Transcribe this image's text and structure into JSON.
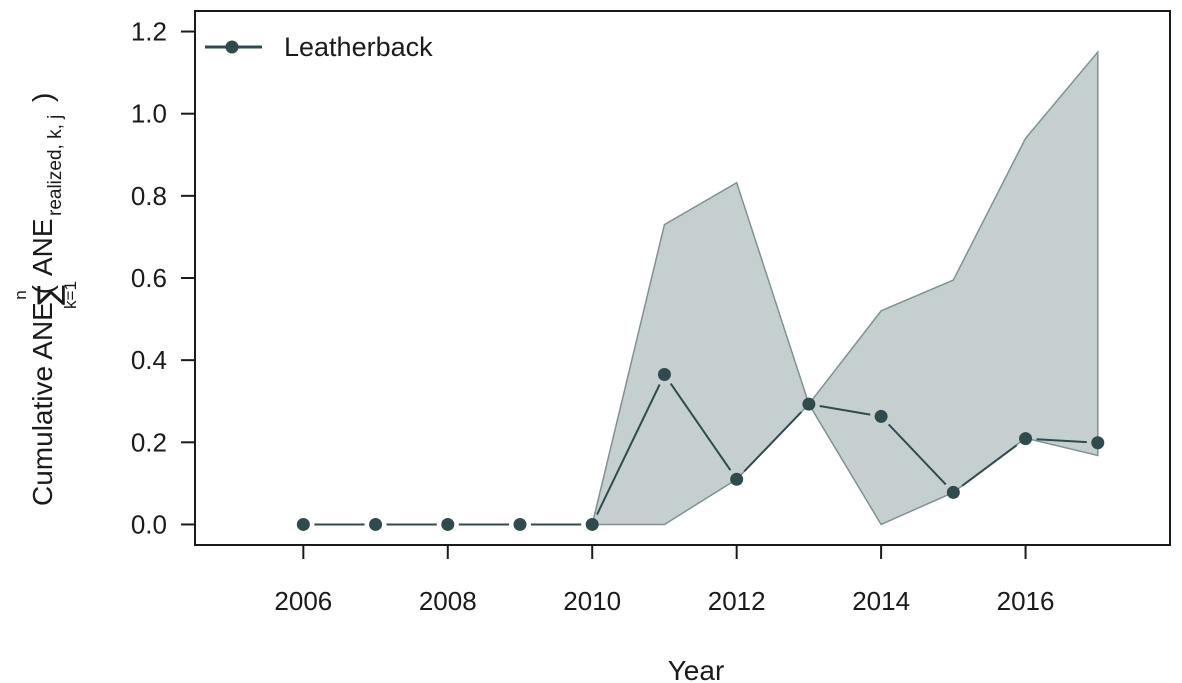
{
  "chart_data": {
    "type": "line",
    "xlabel": "Year",
    "ylabel": {
      "prefix": "Cumulative ANE (",
      "sum_top": "n",
      "sum_symbol": "∑",
      "sum_bottom": "k=1",
      "term": "ANE",
      "subscript": "realized, k, j",
      "suffix": ")"
    },
    "xlim": [
      2004.5,
      2018.0
    ],
    "ylim": [
      -0.05,
      1.25
    ],
    "x_ticks": [
      2006,
      2008,
      2010,
      2012,
      2014,
      2016
    ],
    "x_tick_labels": [
      "2006",
      "2008",
      "2010",
      "2012",
      "2014",
      "2016"
    ],
    "y_ticks": [
      0.0,
      0.2,
      0.4,
      0.6,
      0.8,
      1.0,
      1.2
    ],
    "y_tick_labels": [
      "0.0",
      "0.2",
      "0.4",
      "0.6",
      "0.8",
      "1.0",
      "1.2"
    ],
    "grid": false,
    "legend_position": "top-left",
    "series": [
      {
        "name": "Leatherback",
        "color": "#2f4b4d",
        "x": [
          2006,
          2007,
          2008,
          2009,
          2010,
          2011,
          2012,
          2013,
          2014,
          2015,
          2016,
          2017
        ],
        "values": [
          0.0,
          0.0,
          0.0,
          0.0,
          0.0,
          0.365,
          0.11,
          0.293,
          0.263,
          0.078,
          0.209,
          0.199
        ]
      }
    ],
    "band": {
      "color": "#c5cfcf",
      "edge_color": "#7f9191",
      "x": [
        2010,
        2011,
        2012,
        2013,
        2014,
        2015,
        2016,
        2017
      ],
      "upper": [
        0.0,
        0.73,
        0.832,
        0.293,
        0.52,
        0.595,
        0.94,
        1.15
      ],
      "lower": [
        0.0,
        0.0,
        0.11,
        0.293,
        0.0,
        0.078,
        0.21,
        0.168
      ]
    }
  }
}
